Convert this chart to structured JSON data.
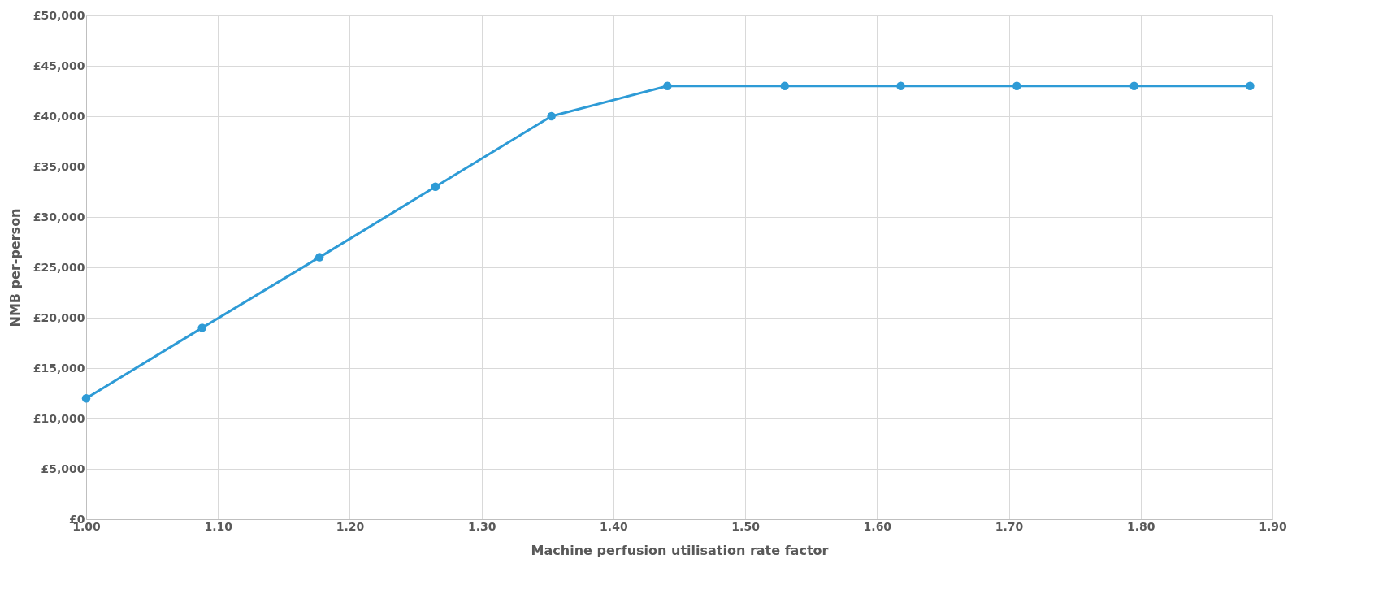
{
  "chart_data": {
    "type": "line",
    "xlabel": "Machine perfusion utilisation rate factor",
    "ylabel": "NMB per-person",
    "x": [
      1.0,
      1.088,
      1.177,
      1.265,
      1.353,
      1.441,
      1.53,
      1.618,
      1.706,
      1.795,
      1.883
    ],
    "series": [
      {
        "color": "#2e9bd6",
        "values": [
          12000,
          19000,
          26000,
          33000,
          40000,
          43000,
          43000,
          43000,
          43000,
          43000,
          43000
        ]
      }
    ],
    "xlim": [
      1.0,
      1.9
    ],
    "xticks": [
      {
        "value": 1.0,
        "label": "1.00"
      },
      {
        "value": 1.1,
        "label": "1.10"
      },
      {
        "value": 1.2,
        "label": "1.20"
      },
      {
        "value": 1.3,
        "label": "1.30"
      },
      {
        "value": 1.4,
        "label": "1.40"
      },
      {
        "value": 1.5,
        "label": "1.50"
      },
      {
        "value": 1.6,
        "label": "1.60"
      },
      {
        "value": 1.7,
        "label": "1.70"
      },
      {
        "value": 1.8,
        "label": "1.80"
      },
      {
        "value": 1.9,
        "label": "1.90"
      }
    ],
    "ylim": [
      0,
      50000
    ],
    "yticks": [
      {
        "value": 0,
        "label": "£0"
      },
      {
        "value": 5000,
        "label": "£5,000"
      },
      {
        "value": 10000,
        "label": "£10,000"
      },
      {
        "value": 15000,
        "label": "£15,000"
      },
      {
        "value": 20000,
        "label": "£20,000"
      },
      {
        "value": 25000,
        "label": "£25,000"
      },
      {
        "value": 30000,
        "label": "£30,000"
      },
      {
        "value": 35000,
        "label": "£35,000"
      },
      {
        "value": 40000,
        "label": "£40,000"
      },
      {
        "value": 45000,
        "label": "£45,000"
      },
      {
        "value": 50000,
        "label": "£50,000"
      }
    ],
    "grid": true,
    "marker": "circle",
    "line_style": "solid"
  }
}
